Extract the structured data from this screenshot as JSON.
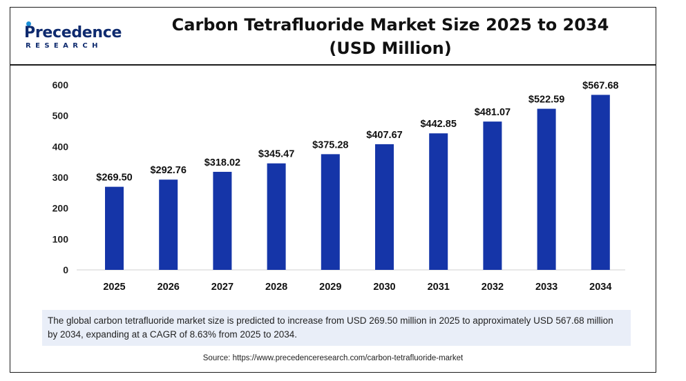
{
  "header": {
    "logo_word": "Precedence",
    "logo_sub": "RESEARCH",
    "title_line1": "Carbon Tetrafluoride Market Size 2025 to 2034",
    "title_line2": "(USD Million)"
  },
  "chart_data": {
    "type": "bar",
    "categories": [
      "2025",
      "2026",
      "2027",
      "2028",
      "2029",
      "2030",
      "2031",
      "2032",
      "2033",
      "2034"
    ],
    "values": [
      269.5,
      292.76,
      318.02,
      345.47,
      375.28,
      407.67,
      442.85,
      481.07,
      522.59,
      567.68
    ],
    "value_labels": [
      "$269.50",
      "$292.76",
      "$318.02",
      "$345.47",
      "$375.28",
      "$407.67",
      "$442.85",
      "$481.07",
      "$522.59",
      "$567.68"
    ],
    "ylim": [
      0,
      600
    ],
    "yticks": [
      0,
      100,
      200,
      300,
      400,
      500,
      600
    ],
    "grid": false,
    "bar_color": "#1535a8"
  },
  "note": "The global carbon tetrafluoride market size is predicted to increase from USD 269.50 million in 2025 to approximately USD 567.68 million by 2034, expanding at a CAGR of 8.63% from 2025 to 2034.",
  "source": "Source: https://www.precedenceresearch.com/carbon-tetrafluoride-market",
  "colors": {
    "logo": "#0e2a6e",
    "note_bg": "#e9eef8"
  }
}
